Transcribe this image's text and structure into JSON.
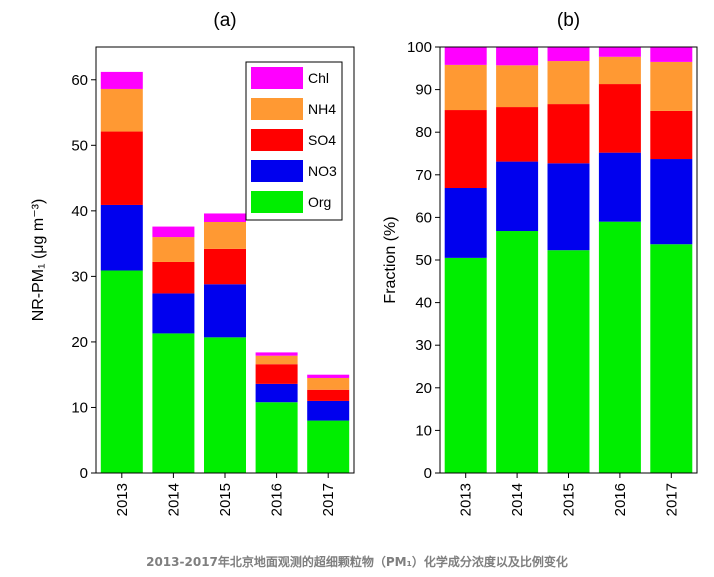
{
  "caption": "2013-2017年北京地面观测的超细颗粒物（PM₁）化学成分浓度以及比例变化",
  "chart_data": [
    {
      "type": "bar",
      "stacked": true,
      "panel_label": "(a)",
      "ylabel": "NR-PM₁ (μg m⁻³)",
      "xlabel": "",
      "categories": [
        "2013",
        "2014",
        "2015",
        "2016",
        "2017"
      ],
      "ylim": [
        0,
        65
      ],
      "yticks": [
        0,
        10,
        20,
        30,
        40,
        50,
        60
      ],
      "legend_position": "top-right",
      "series": [
        {
          "name": "Org",
          "color": "#00ee00",
          "values": [
            30.9,
            21.3,
            20.7,
            10.8,
            8.0
          ]
        },
        {
          "name": "NO3",
          "color": "#0000ee",
          "values": [
            10.0,
            6.1,
            8.1,
            2.8,
            3.0
          ]
        },
        {
          "name": "SO4",
          "color": "#ff0000",
          "values": [
            11.2,
            4.8,
            5.4,
            3.0,
            1.7
          ]
        },
        {
          "name": "NH4",
          "color": "#ff9933",
          "values": [
            6.5,
            3.8,
            4.1,
            1.3,
            1.8
          ]
        },
        {
          "name": "Chl",
          "color": "#ff00ff",
          "values": [
            2.6,
            1.6,
            1.3,
            0.5,
            0.5
          ]
        }
      ]
    },
    {
      "type": "bar",
      "stacked": true,
      "panel_label": "(b)",
      "ylabel": "Fraction (%)",
      "xlabel": "",
      "categories": [
        "2013",
        "2014",
        "2015",
        "2016",
        "2017"
      ],
      "ylim": [
        0,
        100
      ],
      "yticks": [
        0,
        10,
        20,
        30,
        40,
        50,
        60,
        70,
        80,
        90,
        100
      ],
      "series": [
        {
          "name": "Org",
          "color": "#00ee00",
          "values": [
            50.5,
            56.8,
            52.3,
            59.0,
            53.7
          ]
        },
        {
          "name": "NO3",
          "color": "#0000ee",
          "values": [
            16.4,
            16.3,
            20.4,
            16.2,
            20.0
          ]
        },
        {
          "name": "SO4",
          "color": "#ff0000",
          "values": [
            18.3,
            12.8,
            13.9,
            16.1,
            11.3
          ]
        },
        {
          "name": "NH4",
          "color": "#ff9933",
          "values": [
            10.6,
            9.8,
            10.1,
            6.4,
            11.5
          ]
        },
        {
          "name": "Chl",
          "color": "#ff00ff",
          "values": [
            4.2,
            4.3,
            3.3,
            2.3,
            3.5
          ]
        }
      ]
    }
  ]
}
